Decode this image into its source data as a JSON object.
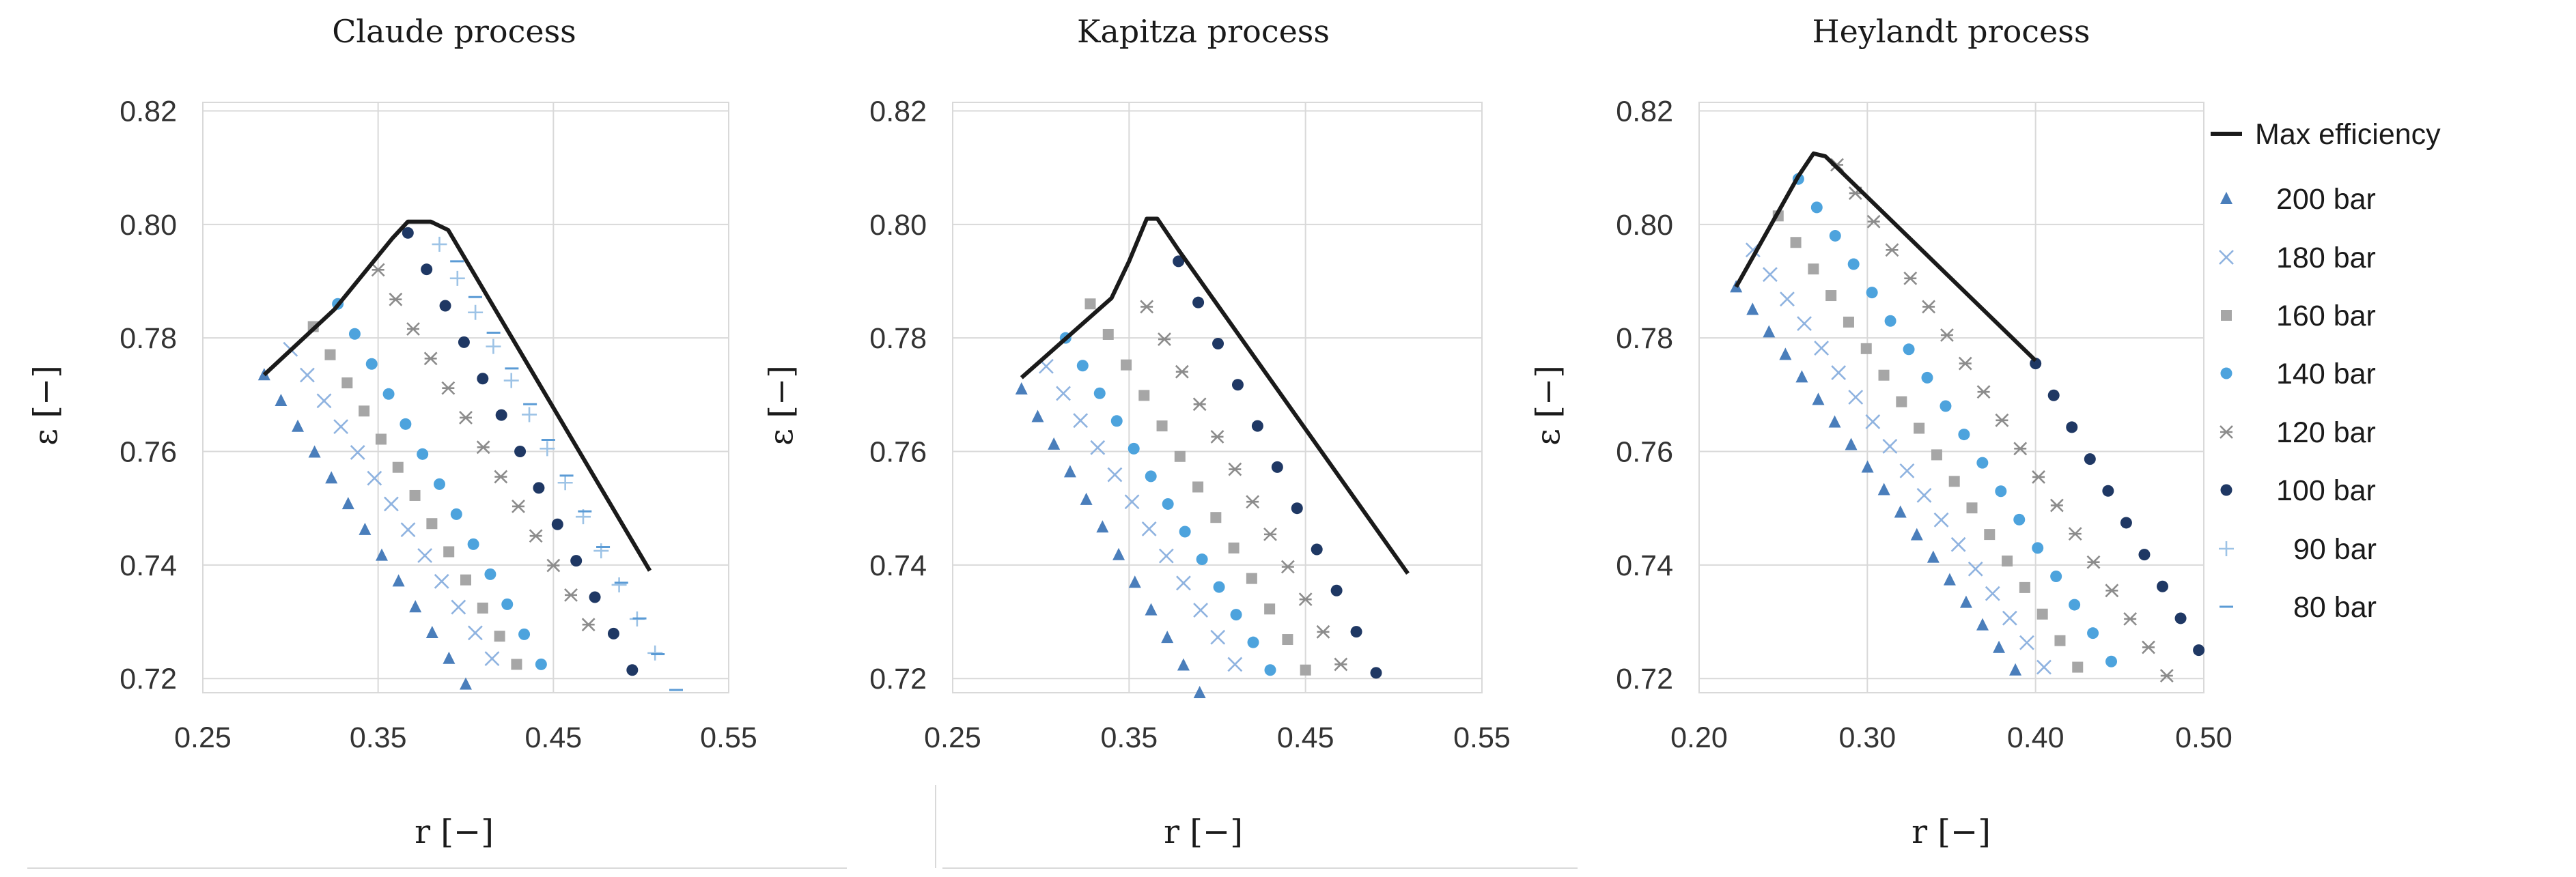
{
  "colors": {
    "200 bar": "#4a7ebb",
    "180 bar": "#8fb3e0",
    "160 bar": "#a6a6a6",
    "140 bar": "#4da3dd",
    "120 bar": "#8c8c8c",
    "100 bar": "#1f3864",
    "90 bar": "#9dc3e6",
    "80 bar": "#5b9bd5",
    "max": "#1a1a1a"
  },
  "legend": {
    "entries": [
      {
        "label": "Max efficiency",
        "marker": "line"
      },
      {
        "label": "200 bar",
        "marker": "triangle"
      },
      {
        "label": "180 bar",
        "marker": "cross"
      },
      {
        "label": "160 bar",
        "marker": "square"
      },
      {
        "label": "140 bar",
        "marker": "circle"
      },
      {
        "label": "120 bar",
        "marker": "star"
      },
      {
        "label": "100 bar",
        "marker": "circle"
      },
      {
        "label": "90 bar",
        "marker": "plus"
      },
      {
        "label": "80 bar",
        "marker": "dash"
      }
    ]
  },
  "chart_data": [
    {
      "type": "scatter",
      "title": "Claude process",
      "xlabel": "r [−]",
      "ylabel": "ε [−]",
      "xlim": [
        0.25,
        0.55
      ],
      "ylim": [
        0.7175,
        0.8215
      ],
      "xticks": [
        "0.25",
        "0.35",
        "0.45",
        "0.55"
      ],
      "yticks": [
        "0.72",
        "0.74",
        "0.76",
        "0.78",
        "0.80",
        "0.82"
      ],
      "series": [
        {
          "name": "200 bar",
          "start": [
            0.285,
            0.7735
          ],
          "end": [
            0.4,
            0.719
          ],
          "n": 13
        },
        {
          "name": "180 bar",
          "start": [
            0.3,
            0.778
          ],
          "end": [
            0.415,
            0.7235
          ],
          "n": 13
        },
        {
          "name": "160 bar",
          "start": [
            0.313,
            0.782
          ],
          "end": [
            0.429,
            0.7225
          ],
          "n": 13
        },
        {
          "name": "140 bar",
          "start": [
            0.327,
            0.786
          ],
          "end": [
            0.443,
            0.7225
          ],
          "n": 13
        },
        {
          "name": "120 bar",
          "start": [
            0.35,
            0.792
          ],
          "end": [
            0.47,
            0.7295
          ],
          "n": 13
        },
        {
          "name": "100 bar",
          "start": [
            0.367,
            0.7985
          ],
          "end": [
            0.495,
            0.7215
          ],
          "n": 13
        },
        {
          "name": "90 bar",
          "start": [
            0.385,
            0.7965
          ],
          "end": [
            0.508,
            0.7245
          ],
          "n": 13
        },
        {
          "name": "80 bar",
          "start": [
            0.395,
            0.7935
          ],
          "end": [
            0.52,
            0.718
          ],
          "n": 13
        },
        {
          "name": "Max efficiency",
          "line": [
            [
              0.285,
              0.7735
            ],
            [
              0.325,
              0.785
            ],
            [
              0.358,
              0.7975
            ],
            [
              0.367,
              0.8005
            ],
            [
              0.38,
              0.8005
            ],
            [
              0.39,
              0.799
            ],
            [
              0.505,
              0.739
            ]
          ]
        }
      ]
    },
    {
      "type": "scatter",
      "title": "Kapitza process",
      "xlabel": "r [−]",
      "ylabel": "ε [−]",
      "xlim": [
        0.25,
        0.55
      ],
      "ylim": [
        0.7175,
        0.8215
      ],
      "xticks": [
        "0.25",
        "0.35",
        "0.45",
        "0.55"
      ],
      "yticks": [
        "0.72",
        "0.74",
        "0.76",
        "0.78",
        "0.80",
        "0.82"
      ],
      "series": [
        {
          "name": "200 bar",
          "start": [
            0.289,
            0.771
          ],
          "end": [
            0.39,
            0.7175
          ],
          "n": 12
        },
        {
          "name": "180 bar",
          "start": [
            0.303,
            0.775
          ],
          "end": [
            0.41,
            0.7225
          ],
          "n": 12
        },
        {
          "name": "160 bar",
          "start": [
            0.328,
            0.786
          ],
          "end": [
            0.45,
            0.7215
          ],
          "n": 13
        },
        {
          "name": "140 bar",
          "start": [
            0.314,
            0.78
          ],
          "end": [
            0.43,
            0.7215
          ],
          "n": 13
        },
        {
          "name": "120 bar",
          "start": [
            0.36,
            0.7855
          ],
          "end": [
            0.47,
            0.7225
          ],
          "n": 12
        },
        {
          "name": "100 bar",
          "start": [
            0.378,
            0.7935
          ],
          "end": [
            0.49,
            0.721
          ],
          "n": 11
        },
        {
          "name": "Max efficiency",
          "line": [
            [
              0.289,
              0.773
            ],
            [
              0.34,
              0.787
            ],
            [
              0.35,
              0.7935
            ],
            [
              0.36,
              0.801
            ],
            [
              0.366,
              0.801
            ],
            [
              0.378,
              0.7955
            ],
            [
              0.508,
              0.7385
            ]
          ]
        }
      ]
    },
    {
      "type": "scatter",
      "title": "Heylandt process",
      "xlabel": "r [−]",
      "ylabel": "ε [−]",
      "xlim": [
        0.2,
        0.5
      ],
      "ylim": [
        0.7175,
        0.8215
      ],
      "xticks": [
        "0.20",
        "0.30",
        "0.40",
        "0.50"
      ],
      "yticks": [
        "0.72",
        "0.74",
        "0.76",
        "0.78",
        "0.80",
        "0.82"
      ],
      "series": [
        {
          "name": "200 bar",
          "start": [
            0.222,
            0.789
          ],
          "end": [
            0.388,
            0.7215
          ],
          "n": 18
        },
        {
          "name": "180 bar",
          "start": [
            0.232,
            0.7955
          ],
          "end": [
            0.405,
            0.722
          ],
          "n": 18
        },
        {
          "name": "160 bar",
          "start": [
            0.247,
            0.8015
          ],
          "end": [
            0.425,
            0.722
          ],
          "n": 18
        },
        {
          "name": "140 bar",
          "start": [
            0.259,
            0.808
          ],
          "end": [
            0.445,
            0.723
          ],
          "n": 18
        },
        {
          "name": "120 bar",
          "start": [
            0.282,
            0.8105
          ],
          "end": [
            0.478,
            0.7205
          ],
          "n": 19
        },
        {
          "name": "100 bar",
          "start": [
            0.4,
            0.7755
          ],
          "end": [
            0.497,
            0.725
          ],
          "n": 10
        },
        {
          "name": "Max efficiency",
          "line": [
            [
              0.222,
              0.789
            ],
            [
              0.259,
              0.8085
            ],
            [
              0.268,
              0.8125
            ],
            [
              0.275,
              0.812
            ],
            [
              0.4,
              0.776
            ]
          ]
        }
      ]
    }
  ]
}
